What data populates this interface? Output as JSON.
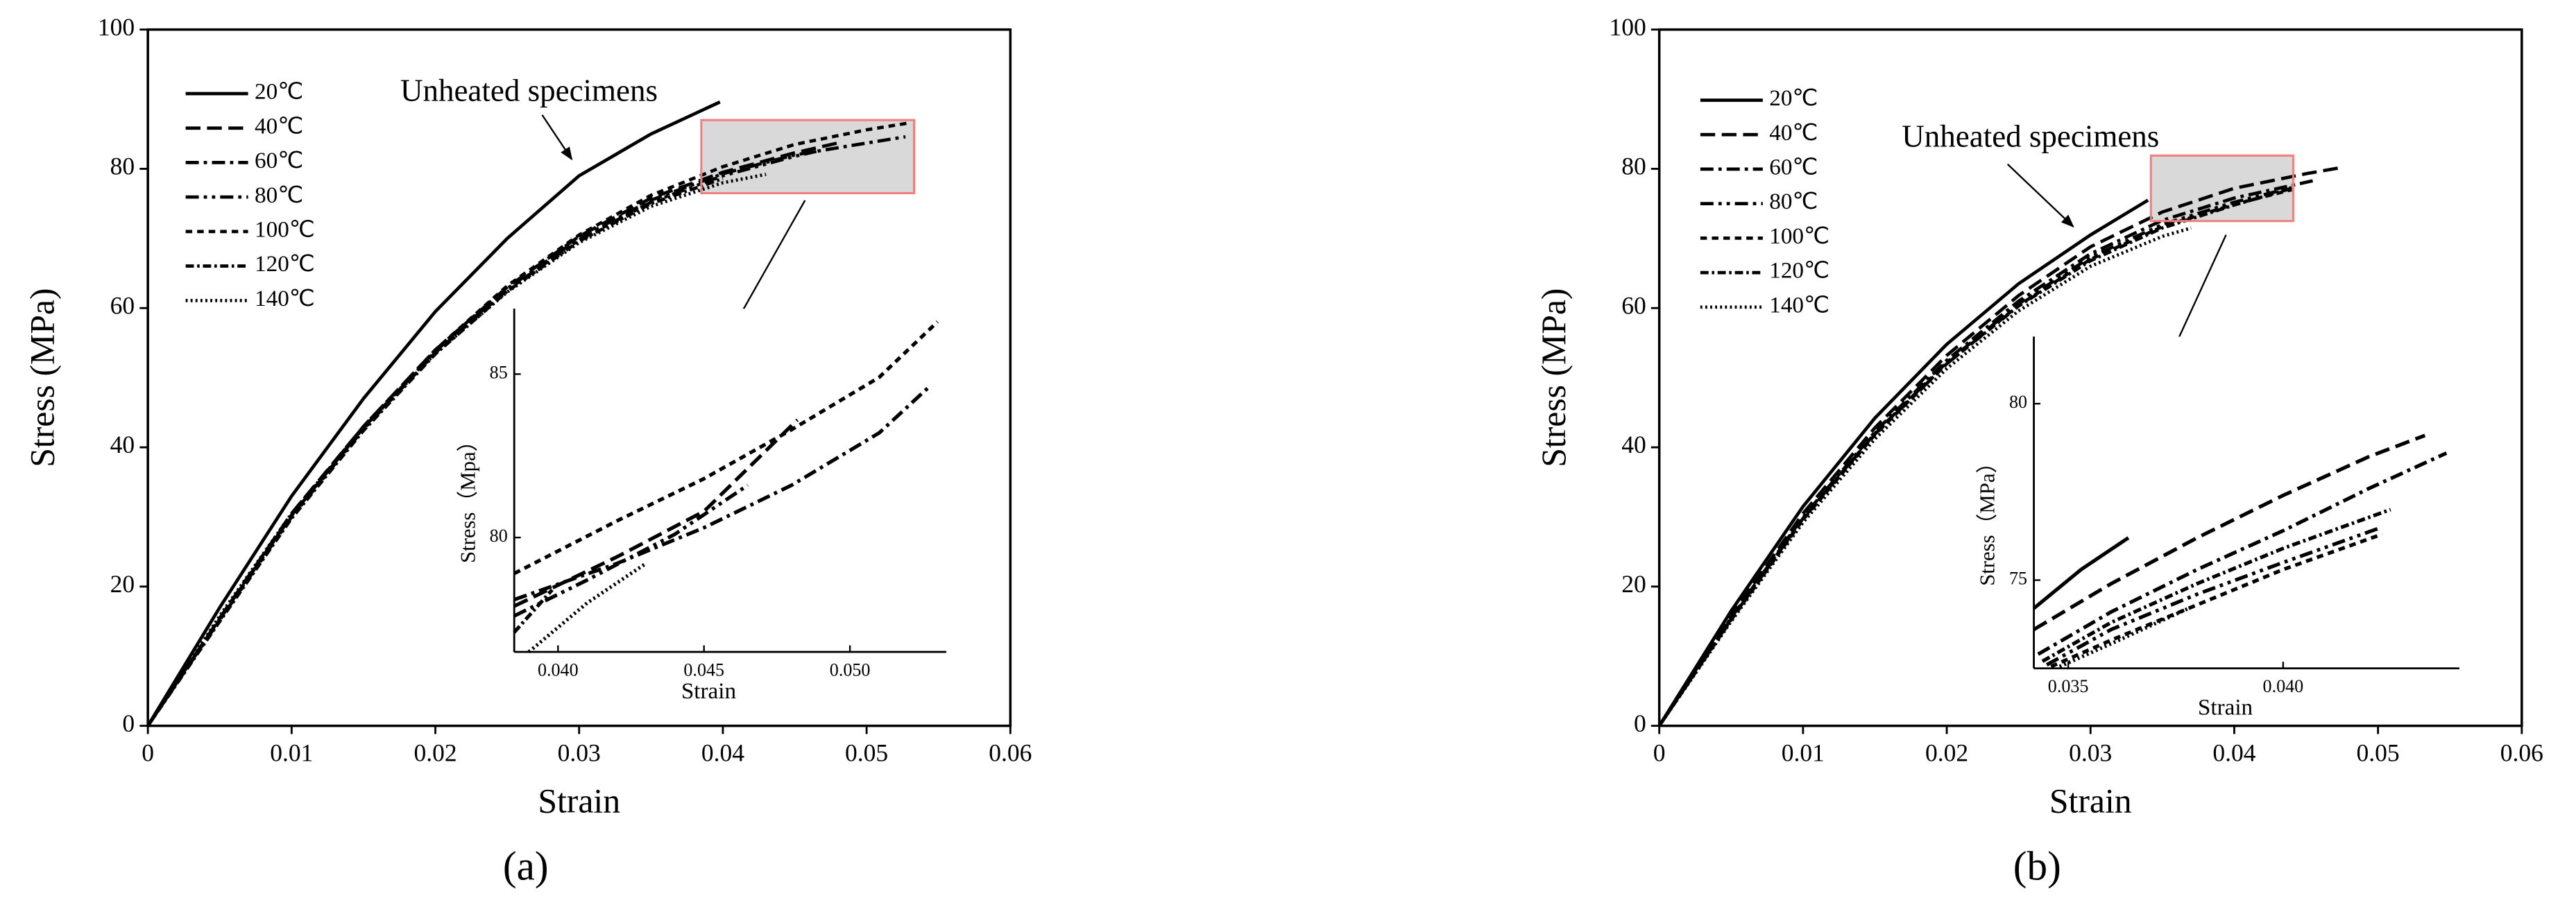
{
  "chart_data": [
    {
      "type": "line",
      "label": "(a)",
      "xlabel": "Strain",
      "ylabel": "Stress (MPa)",
      "annotation": "Unheated specimens",
      "xlim": [
        0,
        0.06
      ],
      "xticks": [
        0,
        0.01,
        0.02,
        0.03,
        0.04,
        0.05,
        0.06
      ],
      "ylim": [
        0,
        100
      ],
      "yticks": [
        0,
        20,
        40,
        60,
        80,
        100
      ],
      "series": [
        {
          "name": "20℃",
          "color": "#000000",
          "dash": "solid",
          "x": [
            0,
            0.005,
            0.01,
            0.015,
            0.02,
            0.025,
            0.03,
            0.035,
            0.0398
          ],
          "values": [
            0,
            17,
            33,
            47,
            59.5,
            70,
            79,
            85,
            89.6
          ]
        },
        {
          "name": "40℃",
          "color": "#000000",
          "dash": "dash",
          "x": [
            0,
            0.005,
            0.01,
            0.015,
            0.02,
            0.025,
            0.03,
            0.035,
            0.04,
            0.045,
            0.0482
          ],
          "values": [
            0,
            15.5,
            30.5,
            43,
            54,
            63,
            70.3,
            75.8,
            79.5,
            82.3,
            83.8
          ]
        },
        {
          "name": "60℃",
          "color": "#000000",
          "dash": "dashdot",
          "x": [
            0,
            0.005,
            0.01,
            0.015,
            0.02,
            0.025,
            0.03,
            0.035,
            0.04,
            0.045,
            0.05,
            0.0527
          ],
          "values": [
            0,
            15.3,
            30.2,
            42.8,
            53.8,
            62.8,
            70,
            75.5,
            79.3,
            82,
            83.7,
            84.6
          ]
        },
        {
          "name": "80℃",
          "color": "#000000",
          "dash": "dashdotdot",
          "x": [
            0,
            0.005,
            0.01,
            0.015,
            0.02,
            0.025,
            0.03,
            0.035,
            0.04,
            0.045,
            0.0465
          ],
          "values": [
            0,
            15.2,
            30,
            42.6,
            53.6,
            62.6,
            69.8,
            75.2,
            79,
            81.8,
            82.5
          ]
        },
        {
          "name": "100℃",
          "color": "#000000",
          "dash": "shortdash",
          "x": [
            0,
            0.005,
            0.01,
            0.015,
            0.02,
            0.025,
            0.03,
            0.035,
            0.04,
            0.045,
            0.05,
            0.053
          ],
          "values": [
            0,
            15.4,
            30.3,
            43,
            54,
            63.2,
            70.5,
            76.2,
            80.3,
            83.5,
            85.6,
            86.6
          ]
        },
        {
          "name": "120℃",
          "color": "#000000",
          "dash": "shortdashdot",
          "x": [
            0,
            0.005,
            0.01,
            0.015,
            0.02,
            0.025,
            0.03,
            0.035,
            0.04
          ],
          "values": [
            0,
            15,
            29.8,
            42.4,
            53.4,
            62.4,
            69.6,
            75,
            78.6
          ]
        },
        {
          "name": "140℃",
          "color": "#000000",
          "dash": "dot",
          "x": [
            0,
            0.005,
            0.01,
            0.015,
            0.02,
            0.025,
            0.03,
            0.035,
            0.04,
            0.043
          ],
          "values": [
            0,
            15.8,
            30.5,
            42.8,
            53.5,
            62.3,
            69.4,
            74.6,
            78,
            79.2
          ]
        }
      ],
      "inset": {
        "xlabel": "Strain",
        "ylabel": "Stress（Mpa）",
        "xlim": [
          0.0385,
          0.0533
        ],
        "xticks": [
          {
            "value": 0.04,
            "label": "0.040"
          },
          {
            "value": 0.045,
            "label": "0.045"
          },
          {
            "value": 0.05,
            "label": "0.050"
          }
        ],
        "ylim": [
          76.5,
          87
        ],
        "yticks": [
          80,
          85
        ],
        "series": [
          {
            "color": "#000000",
            "dash": "dash",
            "x": [
              0.0385,
              0.042,
              0.045,
              0.0482
            ],
            "values": [
              77.9,
              79.4,
              80.8,
              83.6
            ]
          },
          {
            "color": "#000000",
            "dash": "dashdot",
            "x": [
              0.0385,
              0.042,
              0.045,
              0.048,
              0.051,
              0.0527
            ],
            "values": [
              78.1,
              79.2,
              80.3,
              81.6,
              83.2,
              84.6
            ]
          },
          {
            "color": "#000000",
            "dash": "dashdotdot",
            "x": [
              0.0385,
              0.041,
              0.044,
              0.0465
            ],
            "values": [
              77.6,
              78.7,
              80.1,
              81.6
            ]
          },
          {
            "color": "#000000",
            "dash": "shortdash",
            "x": [
              0.0385,
              0.042,
              0.045,
              0.048,
              0.051,
              0.053
            ],
            "values": [
              78.9,
              80.5,
              81.8,
              83.3,
              84.9,
              86.6
            ]
          },
          {
            "color": "#000000",
            "dash": "shortdashdot",
            "x": [
              0.0385,
              0.0398
            ],
            "values": [
              77.1,
              78.4
            ]
          },
          {
            "color": "#000000",
            "dash": "dot",
            "x": [
              0.039,
              0.041,
              0.043
            ],
            "values": [
              76.5,
              78,
              79.2
            ]
          }
        ]
      }
    },
    {
      "type": "line",
      "label": "(b)",
      "xlabel": "Strain",
      "ylabel": "Stress (MPa)",
      "annotation": "Unheated specimens",
      "xlim": [
        0,
        0.06
      ],
      "xticks": [
        0,
        0.01,
        0.02,
        0.03,
        0.04,
        0.05,
        0.06
      ],
      "ylim": [
        0,
        100
      ],
      "yticks": [
        0,
        20,
        40,
        60,
        80,
        100
      ],
      "series": [
        {
          "name": "20℃",
          "color": "#000000",
          "dash": "solid",
          "x": [
            0,
            0.005,
            0.01,
            0.015,
            0.02,
            0.025,
            0.03,
            0.034
          ],
          "values": [
            0,
            16.5,
            31.5,
            44.2,
            54.8,
            63.5,
            70.5,
            75.5
          ]
        },
        {
          "name": "40℃",
          "color": "#000000",
          "dash": "dash",
          "x": [
            0,
            0.005,
            0.01,
            0.015,
            0.02,
            0.025,
            0.03,
            0.035,
            0.04,
            0.045,
            0.0475
          ],
          "values": [
            0,
            15.8,
            30.5,
            42.8,
            53.2,
            61.8,
            68.8,
            73.8,
            77.2,
            79.3,
            80.2
          ]
        },
        {
          "name": "60℃",
          "color": "#000000",
          "dash": "dashdot",
          "x": [
            0,
            0.005,
            0.01,
            0.015,
            0.02,
            0.025,
            0.03,
            0.035,
            0.04,
            0.0455
          ],
          "values": [
            0,
            15.5,
            30,
            42.2,
            52.5,
            61,
            67.8,
            72.6,
            75.8,
            78.3
          ]
        },
        {
          "name": "80℃",
          "color": "#000000",
          "dash": "dashdotdot",
          "x": [
            0,
            0.005,
            0.01,
            0.015,
            0.02,
            0.025,
            0.03,
            0.035,
            0.04,
            0.044
          ],
          "values": [
            0,
            15.3,
            29.8,
            42,
            52.2,
            60.6,
            67.3,
            72,
            75.2,
            77.3
          ]
        },
        {
          "name": "100℃",
          "color": "#000000",
          "dash": "shortdash",
          "x": [
            0,
            0.005,
            0.01,
            0.015,
            0.02,
            0.025,
            0.03,
            0.035,
            0.04,
            0.044
          ],
          "values": [
            0,
            15.2,
            29.6,
            41.8,
            52,
            60.4,
            67,
            71.7,
            74.9,
            77
          ]
        },
        {
          "name": "120℃",
          "color": "#000000",
          "dash": "shortdashdot",
          "x": [
            0,
            0.005,
            0.01,
            0.015,
            0.02,
            0.025,
            0.03,
            0.035,
            0.04,
            0.044
          ],
          "values": [
            0,
            15.4,
            29.8,
            41.9,
            52,
            60.3,
            66.8,
            71.5,
            74.8,
            77.2
          ]
        },
        {
          "name": "140℃",
          "color": "#000000",
          "dash": "dot",
          "x": [
            0,
            0.005,
            0.01,
            0.015,
            0.02,
            0.025,
            0.03,
            0.035,
            0.037
          ],
          "values": [
            0,
            15,
            29.2,
            41.2,
            51.3,
            59.6,
            66,
            70.3,
            71.5
          ]
        }
      ],
      "inset": {
        "xlabel": "Strain",
        "ylabel": "Stress（MPa）",
        "xlim": [
          0.0342,
          0.0441
        ],
        "xticks": [
          {
            "value": 0.035,
            "label": "0.035"
          },
          {
            "value": 0.04,
            "label": "0.040"
          }
        ],
        "ylim": [
          72.5,
          81.9
        ],
        "yticks": [
          75,
          80
        ],
        "series": [
          {
            "color": "#000000",
            "dash": "solid",
            "x": [
              0.0342,
              0.0353,
              0.0364
            ],
            "values": [
              74.2,
              75.3,
              76.2
            ]
          },
          {
            "color": "#000000",
            "dash": "dash",
            "x": [
              0.0342,
              0.036,
              0.038,
              0.04,
              0.042,
              0.0433
            ],
            "values": [
              73.6,
              74.9,
              76.2,
              77.4,
              78.5,
              79.1
            ]
          },
          {
            "color": "#000000",
            "dash": "dashdot",
            "x": [
              0.0343,
              0.036,
              0.038,
              0.04,
              0.042,
              0.0438
            ],
            "values": [
              72.9,
              74.1,
              75.3,
              76.4,
              77.6,
              78.6
            ]
          },
          {
            "color": "#000000",
            "dash": "dashdotdot",
            "x": [
              0.0345,
              0.036,
              0.038,
              0.04,
              0.0423
            ],
            "values": [
              72.6,
              73.6,
              74.6,
              75.5,
              76.5
            ]
          },
          {
            "color": "#000000",
            "dash": "shortdash",
            "x": [
              0.0346,
              0.036,
              0.038,
              0.04,
              0.0423
            ],
            "values": [
              72.55,
              73.3,
              74.3,
              75.3,
              76.3
            ]
          },
          {
            "color": "#000000",
            "dash": "shortdashdot",
            "x": [
              0.0344,
              0.036,
              0.038,
              0.04,
              0.0425
            ],
            "values": [
              72.7,
              73.8,
              74.9,
              75.9,
              77
            ]
          },
          {
            "color": "#000000",
            "dash": "dot",
            "x": [
              0.0348,
              0.036,
              0.0378
            ],
            "values": [
              72.55,
              73.2,
              74.2
            ]
          }
        ]
      }
    }
  ]
}
